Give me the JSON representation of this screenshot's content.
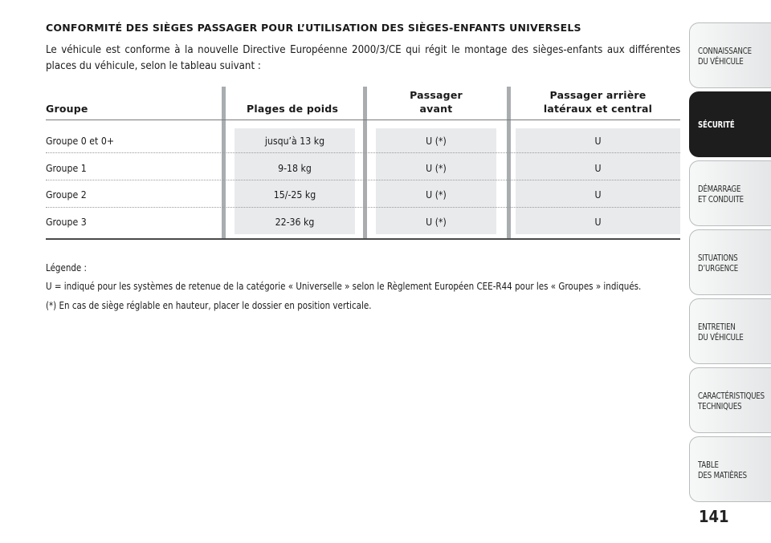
{
  "heading": "CONFORMITÉ DES SIÈGES PASSAGER POUR L’UTILISATION DES SIÈGES-ENFANTS UNIVERSELS",
  "intro": "Le véhicule est conforme à la nouvelle Directive Européenne 2000/3/CE qui régit le montage des sièges-enfants aux différentes places du véhicule, selon le tableau suivant :",
  "table": {
    "headers": {
      "group": "Groupe",
      "weight": "Plages de poids",
      "front": "Passager\navant",
      "rear": "Passager arrière\nlatéraux et central"
    },
    "rows": [
      {
        "group": "Groupe 0 et 0+",
        "weight": "jusqu’à 13 kg",
        "front": "U (*)",
        "rear": "U"
      },
      {
        "group": "Groupe 1",
        "weight": "9-18 kg",
        "front": "U (*)",
        "rear": "U"
      },
      {
        "group": "Groupe 2",
        "weight": "15/-25 kg",
        "front": "U (*)",
        "rear": "U"
      },
      {
        "group": "Groupe 3",
        "weight": "22-36 kg",
        "front": "U (*)",
        "rear": "U"
      }
    ]
  },
  "legend": {
    "title": "Légende :",
    "line1": "U = indiqué pour les systèmes de retenue de la catégorie « Universelle » selon le Règlement Européen CEE-R44 pour les « Groupes » indiqués.",
    "line2": "(*) En cas de siège réglable en hauteur, placer le dossier en position verticale."
  },
  "tabs": [
    {
      "label": "CONNAISSANCE\nDU VÉHICULE",
      "active": false
    },
    {
      "label": "SÉCURITÉ",
      "active": true
    },
    {
      "label": "DÉMARRAGE\nET CONDUITE",
      "active": false
    },
    {
      "label": "SITUATIONS\nD’URGENCE",
      "active": false
    },
    {
      "label": "ENTRETIEN\nDU VÉHICULE",
      "active": false
    },
    {
      "label": "CARACTÉRISTIQUES\nTECHNIQUES",
      "active": false
    },
    {
      "label": "TABLE\nDES MATIÈRES",
      "active": false
    }
  ],
  "page_number": "141",
  "colors": {
    "active_tab": "#1d1d1d",
    "column_bar": "#a9adb0",
    "cell_shade": "#e8eaec"
  }
}
